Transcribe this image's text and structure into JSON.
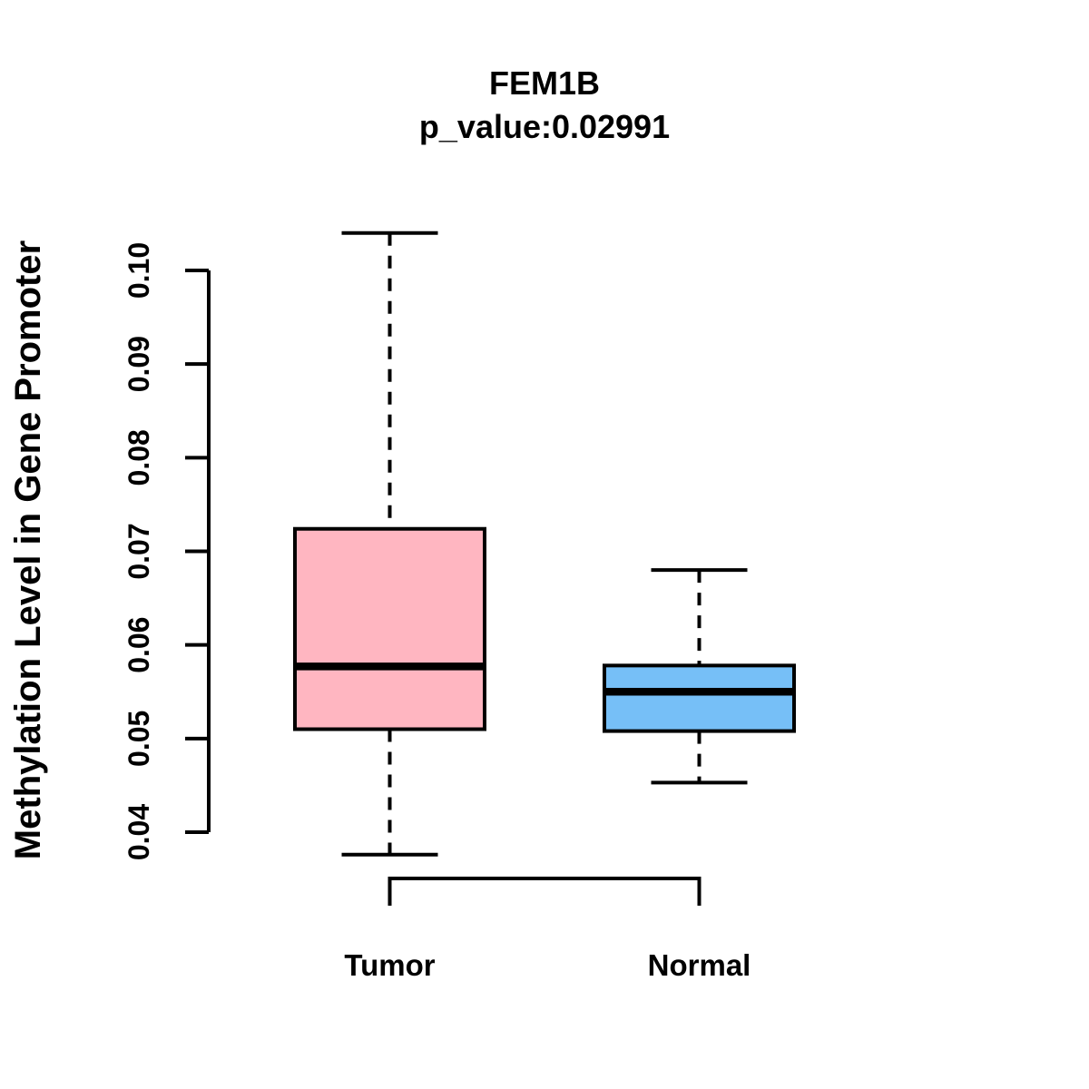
{
  "chart_data": {
    "type": "boxplot",
    "title": "FEM1B",
    "subtitle": "p_value:0.02991",
    "ylabel": "Methylation Level in Gene Promoter",
    "xlabel": "",
    "ylim": [
      0.04,
      0.1
    ],
    "yticks": [
      0.04,
      0.05,
      0.06,
      0.07,
      0.08,
      0.09,
      0.1
    ],
    "ytick_labels": [
      "0.04",
      "0.05",
      "0.06",
      "0.07",
      "0.08",
      "0.09",
      "0.10"
    ],
    "categories": [
      "Tumor",
      "Normal"
    ],
    "grid": false,
    "legend": "none",
    "whisker_style": "dashed",
    "series": [
      {
        "name": "Tumor",
        "color": "#FFB6C1",
        "whisker_low": 0.0376,
        "q1": 0.051,
        "median": 0.0577,
        "q3": 0.0724,
        "whisker_high": 0.104
      },
      {
        "name": "Normal",
        "color": "#76BFF7",
        "whisker_low": 0.0453,
        "q1": 0.0508,
        "median": 0.055,
        "q3": 0.0578,
        "whisker_high": 0.068
      }
    ],
    "colors": {
      "tumor_fill": "#FFB6C1",
      "normal_fill": "#76BFF7",
      "stroke": "#000000",
      "background": "#FFFFFF"
    }
  }
}
